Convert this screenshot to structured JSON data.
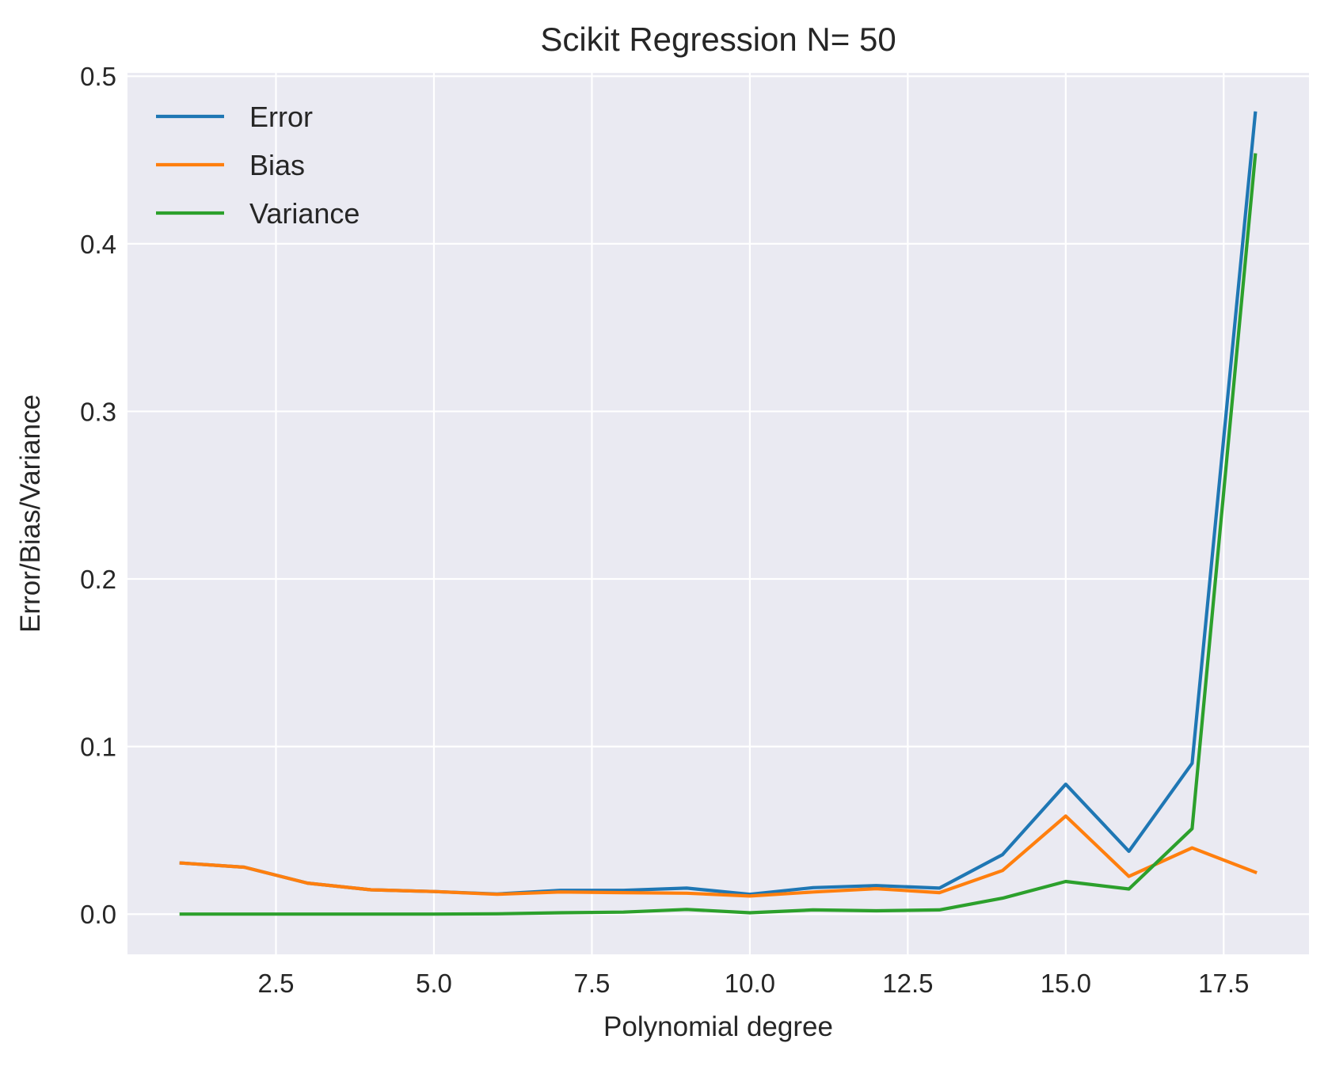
{
  "chart_data": {
    "type": "line",
    "title": "Scikit Regression N= 50",
    "xlabel": "Polynomial degree",
    "ylabel": "Error/Bias/Variance",
    "xlim": [
      0.15,
      18.85
    ],
    "ylim": [
      -0.024,
      0.502
    ],
    "x_ticks": [
      2.5,
      5.0,
      7.5,
      10.0,
      12.5,
      15.0,
      17.5
    ],
    "x_tick_labels": [
      "2.5",
      "5.0",
      "7.5",
      "10.0",
      "12.5",
      "15.0",
      "17.5"
    ],
    "y_ticks": [
      0.0,
      0.1,
      0.2,
      0.3,
      0.4,
      0.5
    ],
    "y_tick_labels": [
      "0.0",
      "0.1",
      "0.2",
      "0.3",
      "0.4",
      "0.5"
    ],
    "grid": true,
    "legend_position": "top-left",
    "background_color": "#EAEAF2",
    "grid_color": "#FFFFFF",
    "x": [
      1,
      2,
      3,
      4,
      5,
      6,
      7,
      8,
      9,
      10,
      11,
      12,
      13,
      14,
      15,
      16,
      17,
      18
    ],
    "series": [
      {
        "name": "Error",
        "color": "#1F77B4",
        "values": [
          0.0305,
          0.028,
          0.0185,
          0.0145,
          0.0135,
          0.012,
          0.0142,
          0.0142,
          0.0155,
          0.0118,
          0.0158,
          0.017,
          0.0155,
          0.0355,
          0.0775,
          0.0375,
          0.09,
          0.478
        ]
      },
      {
        "name": "Bias",
        "color": "#FF7F0E",
        "values": [
          0.0305,
          0.028,
          0.0185,
          0.0145,
          0.0135,
          0.0118,
          0.0132,
          0.0128,
          0.0125,
          0.0108,
          0.0132,
          0.0152,
          0.0128,
          0.026,
          0.0585,
          0.0225,
          0.0395,
          0.025
        ]
      },
      {
        "name": "Variance",
        "color": "#2CA02C",
        "values": [
          0.0,
          0.0,
          0.0,
          0.0,
          0.0,
          0.0002,
          0.0008,
          0.0012,
          0.0028,
          0.0008,
          0.0025,
          0.002,
          0.0025,
          0.0095,
          0.0195,
          0.015,
          0.051,
          0.453
        ]
      }
    ]
  }
}
